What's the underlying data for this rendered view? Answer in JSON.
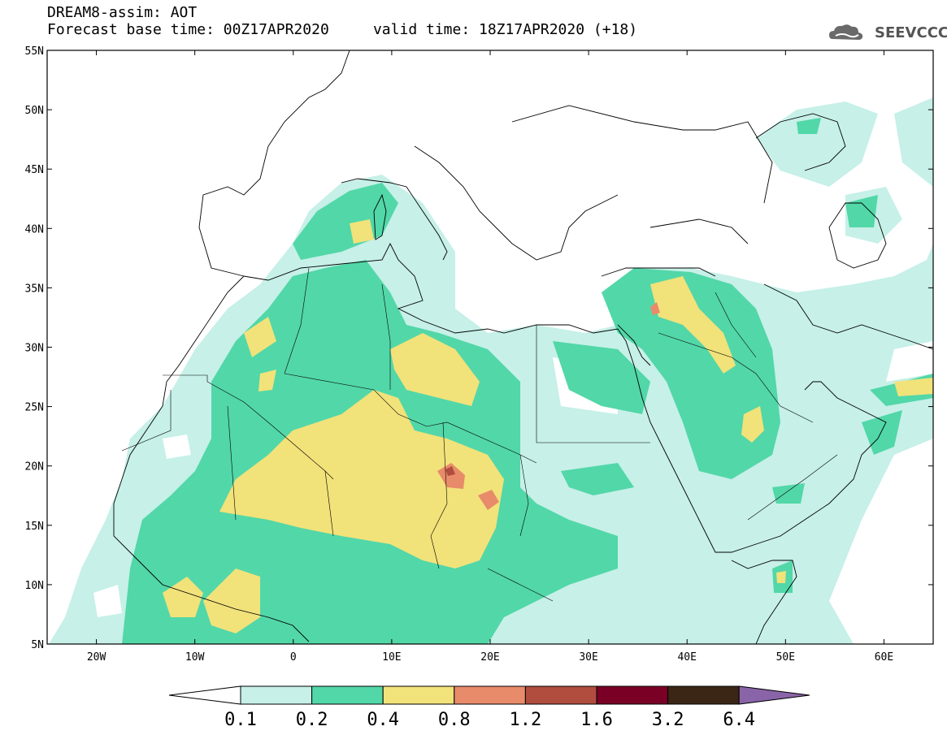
{
  "header": {
    "title": "DREAM8-assim: AOT",
    "base_time_label": "Forecast base time: 00Z17APR2020",
    "valid_time_label": "valid time: 18Z17APR2020 (+18)",
    "logo_text": "SEEVCCC"
  },
  "map": {
    "lon_range": [
      -25,
      65
    ],
    "lat_range": [
      5,
      55
    ],
    "lat_ticks": [
      {
        "value": 55,
        "label": "55N"
      },
      {
        "value": 50,
        "label": "50N"
      },
      {
        "value": 45,
        "label": "45N"
      },
      {
        "value": 40,
        "label": "40N"
      },
      {
        "value": 35,
        "label": "35N"
      },
      {
        "value": 30,
        "label": "30N"
      },
      {
        "value": 25,
        "label": "25N"
      },
      {
        "value": 20,
        "label": "20N"
      },
      {
        "value": 15,
        "label": "15N"
      },
      {
        "value": 10,
        "label": "10N"
      },
      {
        "value": 5,
        "label": "5N"
      }
    ],
    "lon_ticks": [
      {
        "value": -20,
        "label": "20W"
      },
      {
        "value": -10,
        "label": "10W"
      },
      {
        "value": 0,
        "label": "0"
      },
      {
        "value": 10,
        "label": "10E"
      },
      {
        "value": 20,
        "label": "20E"
      },
      {
        "value": 30,
        "label": "30E"
      },
      {
        "value": 40,
        "label": "40E"
      },
      {
        "value": 50,
        "label": "50E"
      },
      {
        "value": 60,
        "label": "60E"
      }
    ]
  },
  "colorbar": {
    "labels": [
      "0.1",
      "0.2",
      "0.4",
      "0.8",
      "1.2",
      "1.6",
      "3.2",
      "6.4"
    ],
    "colors": [
      "#ffffff",
      "#c6f0e8",
      "#52d7a8",
      "#f2e27a",
      "#e88b6a",
      "#b04d3e",
      "#7a0026",
      "#3b2616",
      "#8a64a8"
    ]
  },
  "levels": {
    "light_cyan": "#c6f0e8",
    "green": "#52d7a8",
    "yellow": "#f2e27a",
    "salmon": "#e88b6a",
    "brown_red": "#b04d3e"
  }
}
